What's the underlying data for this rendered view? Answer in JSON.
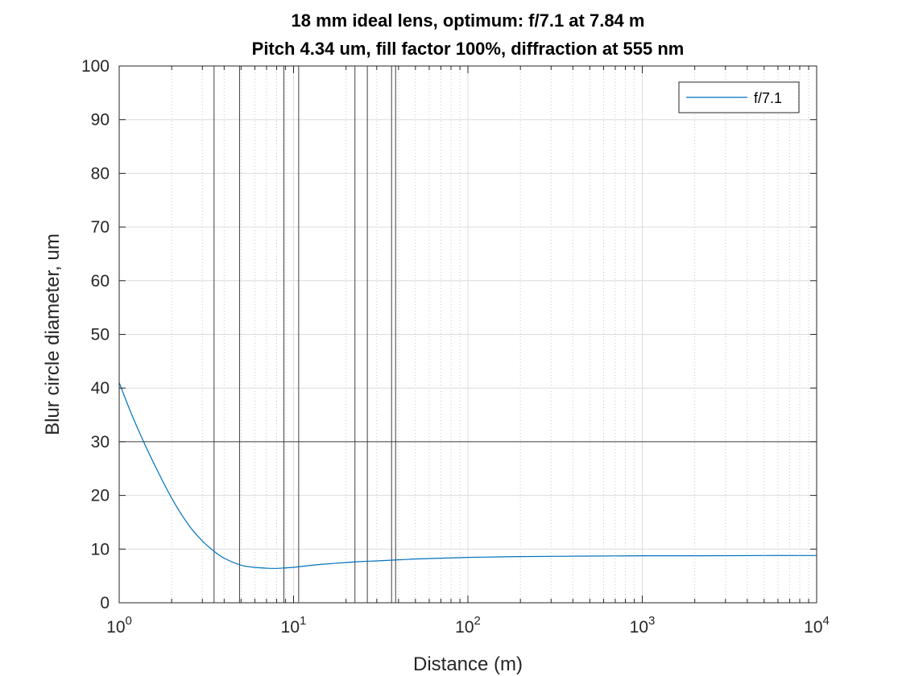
{
  "chart_data": {
    "type": "line",
    "title": "18 mm ideal lens, optimum: f/7.1 at 7.84 m",
    "subtitle": "Pitch 4.34 um, fill factor 100%, diffraction at 555 nm",
    "xlabel": "Distance (m)",
    "ylabel": "Blur circle diameter, um",
    "xscale": "log",
    "xlim": [
      1,
      10000
    ],
    "ylim": [
      0,
      100
    ],
    "grid": true,
    "legend_position": "top-right",
    "x_tick_labels": [
      {
        "base": "10",
        "exp": "0"
      },
      {
        "base": "10",
        "exp": "1"
      },
      {
        "base": "10",
        "exp": "2"
      },
      {
        "base": "10",
        "exp": "3"
      },
      {
        "base": "10",
        "exp": "4"
      }
    ],
    "y_ticks": [
      "0",
      "10",
      "20",
      "30",
      "40",
      "50",
      "60",
      "70",
      "80",
      "90",
      "100"
    ],
    "reference_lines": {
      "horizontal": [
        30
      ],
      "vertical": [
        3.5,
        4.9,
        8.8,
        10.7,
        22.5,
        26.5,
        36.5,
        38.5
      ]
    },
    "series": [
      {
        "name": "f/7.1",
        "color": "#0072BD",
        "x": [
          1,
          1.2,
          1.5,
          2,
          2.5,
          3,
          3.5,
          4,
          5,
          6,
          7,
          7.84,
          9,
          10,
          12,
          15,
          20,
          25,
          30,
          40,
          50,
          70,
          100,
          150,
          200,
          300,
          500,
          1000,
          2000,
          5000,
          10000
        ],
        "y": [
          41,
          34.5,
          27.5,
          19.5,
          14.5,
          11.5,
          9.6,
          8.3,
          7,
          6.6,
          6.45,
          6.4,
          6.5,
          6.6,
          6.9,
          7.2,
          7.5,
          7.7,
          7.8,
          8,
          8.15,
          8.3,
          8.45,
          8.55,
          8.6,
          8.65,
          8.7,
          8.75,
          8.75,
          8.8,
          8.8
        ]
      }
    ]
  }
}
